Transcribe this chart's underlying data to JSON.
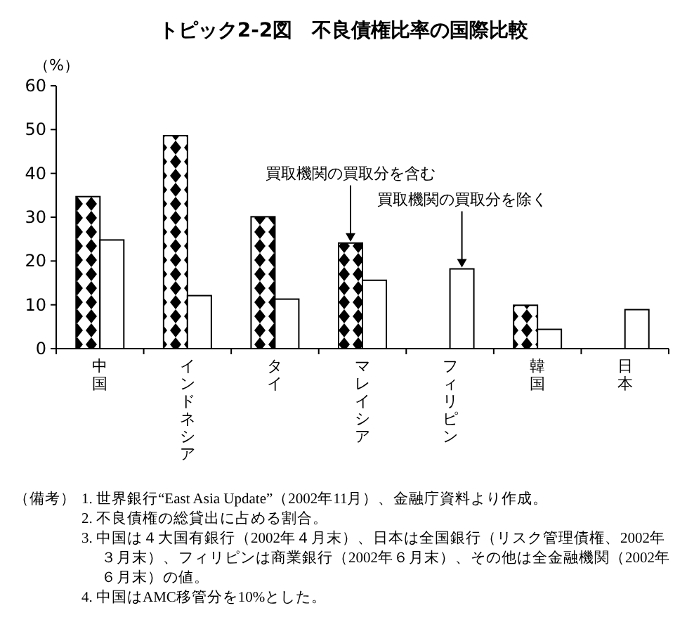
{
  "chart_data": {
    "type": "bar",
    "title": "トピック2-2図　不良債権比率の国際比較",
    "ylabel": "（%）",
    "categories": [
      "中国",
      "インドネシア",
      "タイ",
      "マレイシア",
      "フィリピン",
      "韓国",
      "日本"
    ],
    "series": [
      {
        "name": "買取機関の買取分を含む",
        "color": "#000000",
        "values": [
          34.7,
          48.6,
          30.1,
          24.1,
          null,
          9.9,
          null
        ]
      },
      {
        "name": "買取機関の買取分を除く",
        "color": "#ffffff",
        "values": [
          24.8,
          12.1,
          11.3,
          15.6,
          18.2,
          4.4,
          8.9
        ]
      }
    ],
    "ylim": [
      0,
      60
    ],
    "yticks": [
      0,
      10,
      20,
      30,
      40,
      50,
      60
    ],
    "grid": false,
    "annotations": [
      "（備考）",
      "1. 世界銀行“East Asia Update”（2002年11月）、金融庁資料より作成。",
      "2. 不良債権の総貸出に占める割合。",
      "3. 中国は４大国有銀行（2002年４月末）、日本は全国銀行（リスク管理債権、2002年３月末）、フィリピンは商業銀行（2002年６月末）、その他は全金融機関（2002年６月末）の値。",
      "4. 中国はAMC移管分を10%とした。"
    ]
  }
}
